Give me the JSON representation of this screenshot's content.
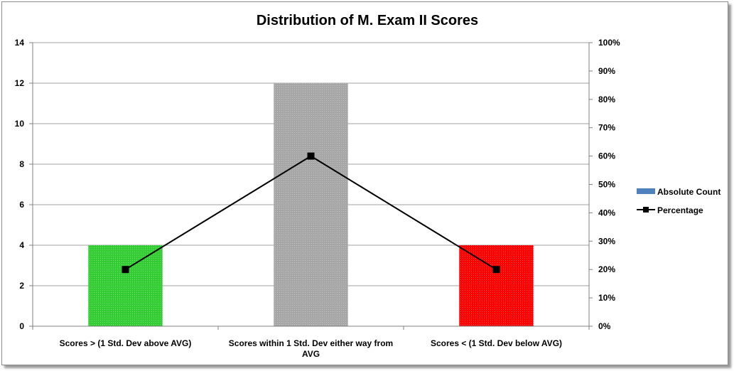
{
  "chart_data": {
    "type": "bar",
    "title": "Distribution of M. Exam II Scores",
    "categories": [
      [
        "Scores > (1 Std. Dev above AVG)"
      ],
      [
        "Scores within 1 Std. Dev either way from",
        "AVG"
      ],
      [
        "Scores < (1 Std. Dev below AVG)"
      ]
    ],
    "series": [
      {
        "name": "Absolute Count",
        "type": "bar",
        "axis": "left",
        "values": [
          4,
          12,
          4
        ],
        "colors": [
          "#33cc33",
          "#a6a6a6",
          "#ff0000"
        ],
        "legend_color": "#4f81bd"
      },
      {
        "name": "Percentage",
        "type": "line",
        "axis": "right",
        "values": [
          20,
          60,
          20
        ],
        "color": "#000000"
      }
    ],
    "y_left": {
      "min": 0,
      "max": 14,
      "step": 2,
      "ticks": [
        "0",
        "2",
        "4",
        "6",
        "8",
        "10",
        "12",
        "14"
      ]
    },
    "y_right": {
      "min": 0,
      "max": 100,
      "step": 10,
      "ticks": [
        "0%",
        "10%",
        "20%",
        "30%",
        "40%",
        "50%",
        "60%",
        "70%",
        "80%",
        "90%",
        "100%"
      ]
    },
    "grid": true,
    "legend": "right"
  }
}
